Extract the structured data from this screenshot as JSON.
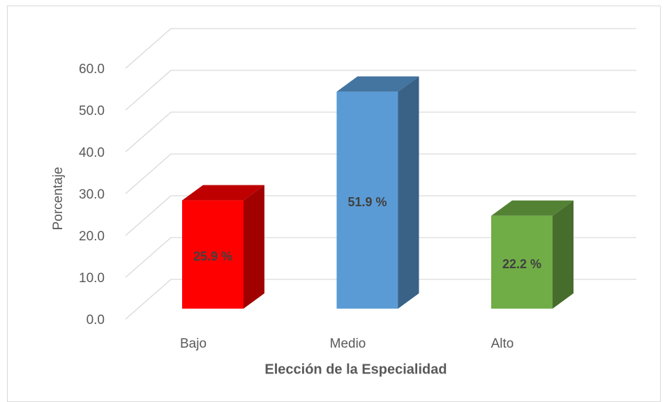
{
  "chart_data": {
    "type": "bar3d",
    "categories": [
      "Bajo",
      "Medio",
      "Alto"
    ],
    "values": [
      25.9,
      51.9,
      22.2
    ],
    "value_labels": [
      "25.9 %",
      "51.9 %",
      "22.2 %"
    ],
    "colors": [
      "#ff0000",
      "#5b9bd5",
      "#70ad47"
    ],
    "ylabel": "Porcentaje",
    "xlabel": "Elección de la Especialidad",
    "ylim": [
      0,
      60
    ],
    "yticks": [
      {
        "value": 0,
        "label": "0.0"
      },
      {
        "value": 10,
        "label": "10.0"
      },
      {
        "value": 20,
        "label": "20.0"
      },
      {
        "value": 30,
        "label": "30.0"
      },
      {
        "value": 40,
        "label": "40.0"
      },
      {
        "value": 50,
        "label": "50.0"
      },
      {
        "value": 60,
        "label": "60.0"
      }
    ],
    "grid": true
  }
}
